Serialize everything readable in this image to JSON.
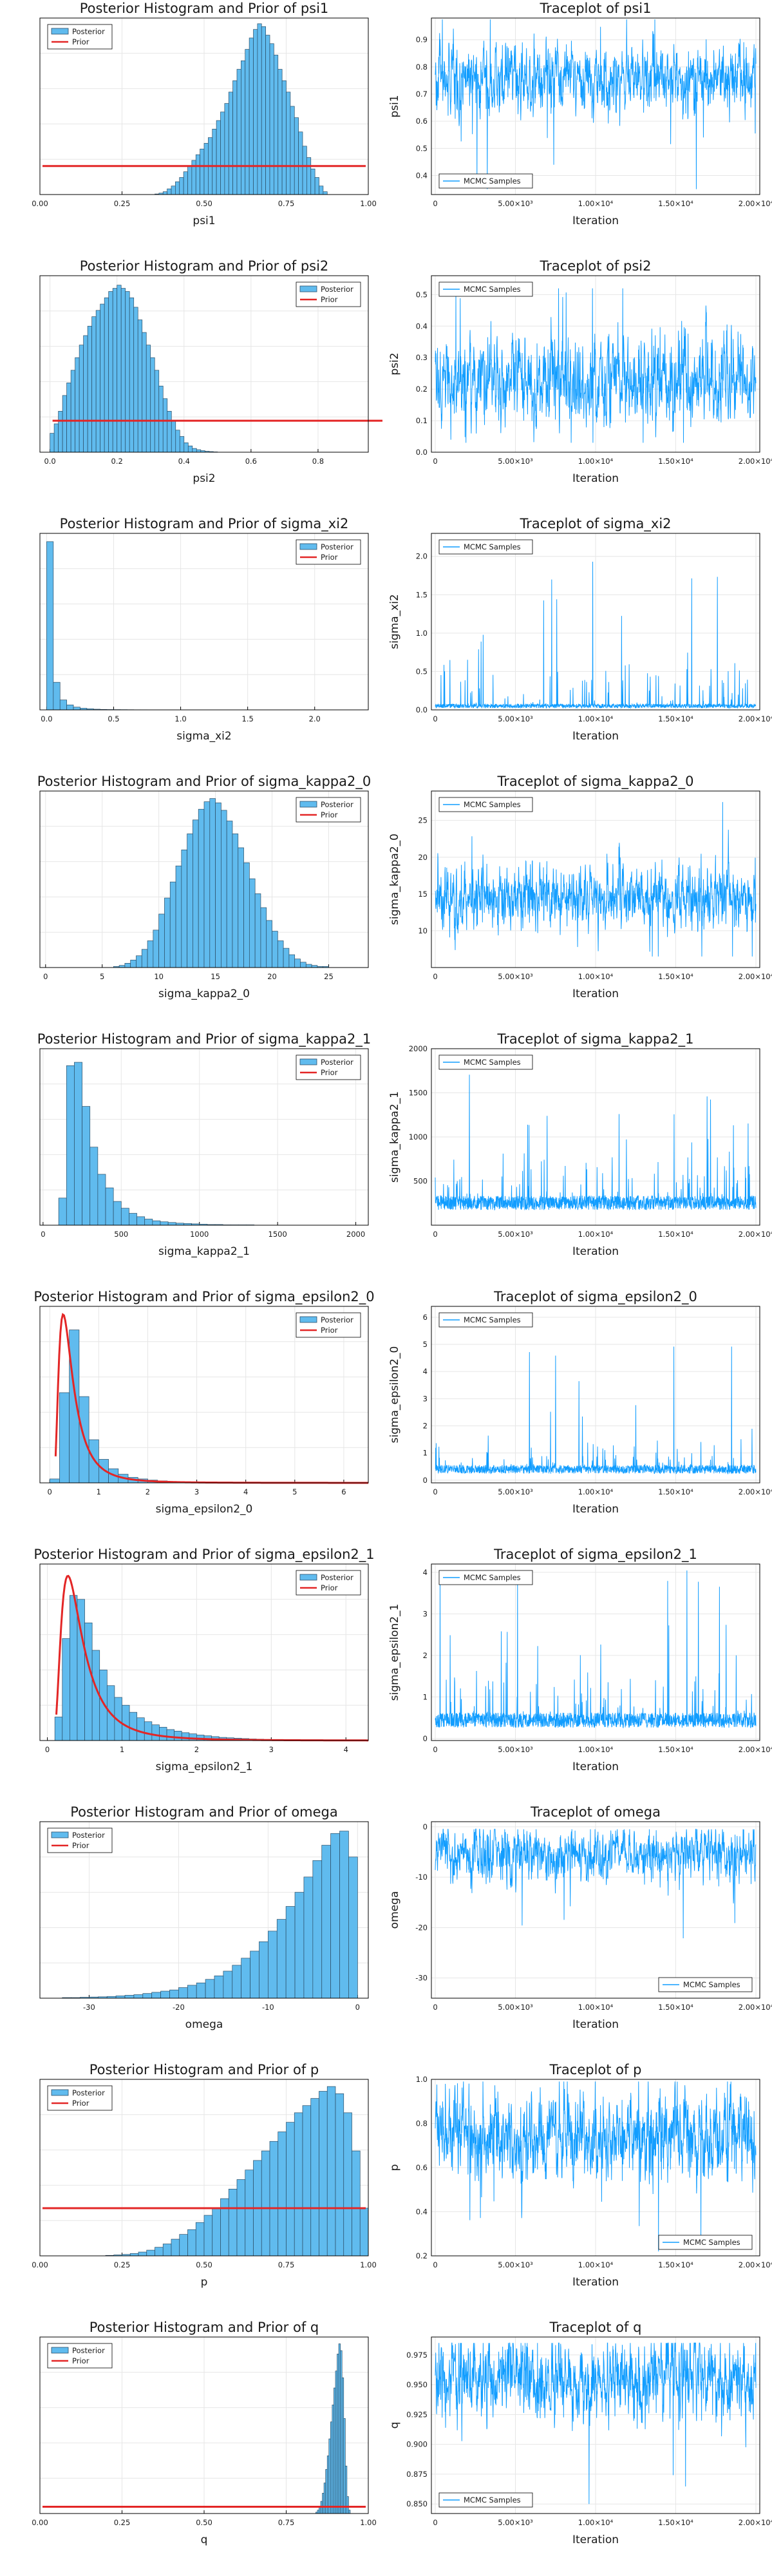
{
  "colors": {
    "histogram_fill": "#60bbee",
    "histogram_edge": "#2b4d66",
    "prior_line": "#e32626",
    "trace_line": "#119dff"
  },
  "legend": {
    "posterior": "Posterior",
    "prior": "Prior",
    "mcmc": "MCMC Samples"
  },
  "trace_xaxis": {
    "label": "Iteration",
    "ticks": [
      0,
      5000,
      10000,
      15000,
      20000
    ],
    "tick_labels": [
      "0",
      "5.00×10³",
      "1.00×10⁴",
      "1.50×10⁴",
      "2.00×10⁴"
    ],
    "range": [
      0,
      20000
    ]
  },
  "chart_data": [
    {
      "param": "psi1",
      "type": "bar",
      "title": "Posterior Histogram and Prior of psi1",
      "xlabel": "psi1",
      "xlim": [
        0,
        1
      ],
      "xticks": [
        0.0,
        0.25,
        0.5,
        0.75,
        1.0
      ],
      "xtick_labels": [
        "0.00",
        "0.25",
        "0.50",
        "0.75",
        "1.00"
      ],
      "ylim": [
        0,
        6.2
      ],
      "bin_start": 0.35,
      "bin_width": 0.0125,
      "values": [
        0.02,
        0.05,
        0.1,
        0.2,
        0.3,
        0.45,
        0.6,
        0.8,
        1.0,
        1.2,
        1.4,
        1.6,
        1.8,
        2.0,
        2.3,
        2.6,
        2.9,
        3.2,
        3.6,
        4.0,
        4.4,
        4.7,
        5.1,
        5.5,
        5.8,
        6.0,
        5.9,
        5.6,
        5.3,
        4.9,
        4.4,
        4.0,
        3.6,
        3.1,
        2.7,
        2.2,
        1.7,
        1.3,
        0.9,
        0.6,
        0.3,
        0.1
      ],
      "prior_type": "uniform",
      "prior_range": [
        0,
        1
      ],
      "legend_position": "top-left",
      "trace": {
        "title": "Traceplot of psi1",
        "ylabel": "psi1",
        "ylim": [
          0.33,
          0.98
        ],
        "yticks": [
          0.4,
          0.5,
          0.6,
          0.7,
          0.8,
          0.9
        ],
        "ytick_labels": [
          "0.4",
          "0.5",
          "0.6",
          "0.7",
          "0.8",
          "0.9"
        ],
        "mean": 0.76,
        "sd": 0.08,
        "min": 0.35,
        "max": 0.975,
        "legend_position": "bottom-left"
      }
    },
    {
      "param": "psi2",
      "type": "bar",
      "title": "Posterior Histogram and Prior of psi2",
      "xlabel": "psi2",
      "xlim": [
        -0.03,
        0.95
      ],
      "xticks": [
        0.0,
        0.2,
        0.4,
        0.6,
        0.8
      ],
      "xtick_labels": [
        "0.0",
        "0.2",
        "0.4",
        "0.6",
        "0.8"
      ],
      "ylim": [
        0,
        5.6
      ],
      "bin_start": 0.0,
      "bin_width": 0.0125,
      "values": [
        0.6,
        0.9,
        1.3,
        1.8,
        2.2,
        2.6,
        3.0,
        3.4,
        3.7,
        4.0,
        4.3,
        4.5,
        4.7,
        4.9,
        5.1,
        5.2,
        5.3,
        5.2,
        5.1,
        4.9,
        4.6,
        4.2,
        3.8,
        3.4,
        3.0,
        2.6,
        2.1,
        1.7,
        1.3,
        1.0,
        0.7,
        0.5,
        0.3,
        0.2,
        0.12,
        0.08,
        0.05,
        0.03,
        0.02,
        0.01
      ],
      "prior_type": "uniform",
      "prior_range": [
        0,
        1
      ],
      "legend_position": "top-right",
      "trace": {
        "title": "Traceplot of psi2",
        "ylabel": "psi2",
        "ylim": [
          0,
          0.56
        ],
        "yticks": [
          0.0,
          0.1,
          0.2,
          0.3,
          0.4,
          0.5
        ],
        "ytick_labels": [
          "0.0",
          "0.1",
          "0.2",
          "0.3",
          "0.4",
          "0.5"
        ],
        "mean": 0.23,
        "sd": 0.09,
        "min": 0.03,
        "max": 0.52,
        "legend_position": "top-left"
      }
    },
    {
      "param": "sigma_xi2",
      "type": "bar",
      "title": "Posterior Histogram and Prior of sigma_xi2",
      "xlabel": "sigma_xi2",
      "xlim": [
        -0.05,
        2.4
      ],
      "xticks": [
        0.0,
        0.5,
        1.0,
        1.5,
        2.0
      ],
      "xtick_labels": [
        "0.0",
        "0.5",
        "1.0",
        "1.5",
        "2.0"
      ],
      "ylim": [
        0,
        32
      ],
      "bin_start": 0.0,
      "bin_width": 0.05,
      "values": [
        30.5,
        5.0,
        1.8,
        0.9,
        0.5,
        0.3,
        0.2,
        0.12,
        0.08,
        0.06,
        0.05,
        0.04,
        0.03,
        0.02,
        0.02,
        0.01,
        0.01,
        0.01,
        0.01,
        0.01
      ],
      "prior_type": "none",
      "legend_position": "top-right",
      "trace": {
        "title": "Traceplot of sigma_xi2",
        "ylabel": "sigma_xi2",
        "ylim": [
          0,
          2.3
        ],
        "yticks": [
          0.0,
          0.5,
          1.0,
          1.5,
          2.0
        ],
        "ytick_labels": [
          "0.0",
          "0.5",
          "1.0",
          "1.5",
          "2.0"
        ],
        "mean": 0.06,
        "sd": 0.12,
        "min": 0.0,
        "max": 2.2,
        "legend_position": "top-left"
      }
    },
    {
      "param": "sigma_kappa2_0",
      "type": "bar",
      "title": "Posterior Histogram and Prior of sigma_kappa2_0",
      "xlabel": "sigma_kappa2_0",
      "xlim": [
        -0.5,
        28.5
      ],
      "xticks": [
        0,
        5,
        10,
        15,
        20,
        25
      ],
      "xtick_labels": [
        "0",
        "5",
        "10",
        "15",
        "20",
        "25"
      ],
      "ylim": [
        0,
        0.165
      ],
      "bin_start": 6.0,
      "bin_width": 0.5,
      "values": [
        0.001,
        0.002,
        0.004,
        0.007,
        0.011,
        0.017,
        0.025,
        0.035,
        0.05,
        0.065,
        0.08,
        0.095,
        0.11,
        0.125,
        0.138,
        0.148,
        0.155,
        0.158,
        0.154,
        0.147,
        0.137,
        0.125,
        0.112,
        0.098,
        0.083,
        0.069,
        0.056,
        0.044,
        0.034,
        0.025,
        0.018,
        0.012,
        0.008,
        0.005,
        0.003,
        0.002,
        0.001,
        0.001
      ],
      "prior_type": "none",
      "legend_position": "top-right",
      "trace": {
        "title": "Traceplot of sigma_kappa2_0",
        "ylabel": "sigma_kappa2_0",
        "ylim": [
          5,
          29
        ],
        "yticks": [
          10,
          15,
          20,
          25
        ],
        "ytick_labels": [
          "10",
          "15",
          "20",
          "25"
        ],
        "mean": 14.5,
        "sd": 2.8,
        "min": 6.5,
        "max": 27.5,
        "legend_position": "top-left"
      }
    },
    {
      "param": "sigma_kappa2_1",
      "type": "bar",
      "title": "Posterior Histogram and Prior of sigma_kappa2_1",
      "xlabel": "sigma_kappa2_1",
      "xlim": [
        -20,
        2080
      ],
      "xticks": [
        0,
        500,
        1000,
        1500,
        2000
      ],
      "xtick_labels": [
        "0",
        "500",
        "1000",
        "1500",
        "2000"
      ],
      "ylim": [
        0,
        0.0052
      ],
      "bin_start": 100,
      "bin_width": 50,
      "values": [
        0.0008,
        0.0047,
        0.0048,
        0.0035,
        0.0023,
        0.0015,
        0.0011,
        0.0007,
        0.0005,
        0.00035,
        0.00025,
        0.00018,
        0.00013,
        0.0001,
        8e-05,
        6e-05,
        5e-05,
        4e-05,
        3e-05,
        2e-05,
        2e-05,
        1e-05,
        1e-05,
        1e-05,
        1e-05
      ],
      "prior_type": "none",
      "legend_position": "top-right",
      "trace": {
        "title": "Traceplot of sigma_kappa2_1",
        "ylabel": "sigma_kappa2_1",
        "ylim": [
          0,
          2000
        ],
        "yticks": [
          500,
          1000,
          1500,
          2000
        ],
        "ytick_labels": [
          "500",
          "1000",
          "1500",
          "2000"
        ],
        "mean": 280,
        "sd": 120,
        "min": 100,
        "max": 1950,
        "legend_position": "top-left"
      }
    },
    {
      "param": "sigma_epsilon2_0",
      "type": "bar",
      "title": "Posterior Histogram and Prior of sigma_epsilon2_0",
      "xlabel": "sigma_epsilon2_0",
      "xlim": [
        -0.2,
        6.5
      ],
      "xticks": [
        0,
        1,
        2,
        3,
        4,
        5,
        6
      ],
      "xtick_labels": [
        "0",
        "1",
        "2",
        "3",
        "4",
        "5",
        "6"
      ],
      "ylim": [
        0,
        2.25
      ],
      "bin_start": 0.0,
      "bin_width": 0.2,
      "values": [
        0.05,
        1.15,
        1.95,
        1.1,
        0.55,
        0.3,
        0.18,
        0.11,
        0.07,
        0.05,
        0.035,
        0.025,
        0.018,
        0.013,
        0.01,
        0.008,
        0.006,
        0.005,
        0.004,
        0.003,
        0.003,
        0.002,
        0.002,
        0.001,
        0.001,
        0.001,
        0.001,
        0.001,
        0.001,
        0.001
      ],
      "prior_type": "invgamma",
      "prior_shape": 3,
      "prior_scale": 1.1,
      "prior_peak": 2.15,
      "legend_position": "top-right",
      "trace": {
        "title": "Traceplot of sigma_epsilon2_0",
        "ylabel": "sigma_epsilon2_0",
        "ylim": [
          -0.1,
          6.4
        ],
        "yticks": [
          0,
          1,
          2,
          3,
          4,
          5,
          6
        ],
        "ytick_labels": [
          "0",
          "1",
          "2",
          "3",
          "4",
          "5",
          "6"
        ],
        "mean": 0.45,
        "sd": 0.2,
        "min": 0.1,
        "max": 6.1,
        "legend_position": "top-left"
      }
    },
    {
      "param": "sigma_epsilon2_1",
      "type": "bar",
      "title": "Posterior Histogram and Prior of sigma_epsilon2_1",
      "xlabel": "sigma_epsilon2_1",
      "xlim": [
        -0.1,
        4.3
      ],
      "xticks": [
        0,
        1,
        2,
        3,
        4
      ],
      "xtick_labels": [
        "0",
        "1",
        "2",
        "3",
        "4"
      ],
      "ylim": [
        0,
        2.25
      ],
      "bin_start": 0.1,
      "bin_width": 0.1,
      "values": [
        0.3,
        1.3,
        1.85,
        1.8,
        1.5,
        1.15,
        0.9,
        0.7,
        0.55,
        0.45,
        0.36,
        0.29,
        0.24,
        0.2,
        0.17,
        0.14,
        0.12,
        0.1,
        0.085,
        0.07,
        0.06,
        0.05,
        0.04,
        0.035,
        0.03,
        0.025,
        0.02,
        0.017,
        0.014,
        0.012,
        0.01,
        0.009,
        0.008,
        0.007,
        0.006,
        0.005,
        0.004,
        0.003,
        0.002,
        0.002
      ],
      "prior_type": "invgamma",
      "prior_shape": 3,
      "prior_scale": 1.1,
      "prior_peak": 2.1,
      "legend_position": "top-right",
      "trace": {
        "title": "Traceplot of sigma_epsilon2_1",
        "ylabel": "sigma_epsilon2_1",
        "ylim": [
          -0.05,
          4.2
        ],
        "yticks": [
          0,
          1,
          2,
          3,
          4
        ],
        "ytick_labels": [
          "0",
          "1",
          "2",
          "3",
          "4"
        ],
        "mean": 0.5,
        "sd": 0.25,
        "min": 0.1,
        "max": 4.1,
        "legend_position": "top-left"
      }
    },
    {
      "param": "omega",
      "type": "bar",
      "title": "Posterior Histogram and Prior of omega",
      "xlabel": "omega",
      "xlim": [
        -35.5,
        1.2
      ],
      "xticks": [
        -30,
        -20,
        -10,
        0
      ],
      "xtick_labels": [
        "-30",
        "-20",
        "-10",
        "0"
      ],
      "ylim": [
        0,
        0.15
      ],
      "bin_start": -33,
      "bin_width": 1,
      "values": [
        0.0005,
        0.0005,
        0.0008,
        0.001,
        0.0012,
        0.0015,
        0.002,
        0.0025,
        0.003,
        0.004,
        0.005,
        0.006,
        0.007,
        0.009,
        0.011,
        0.013,
        0.016,
        0.019,
        0.023,
        0.028,
        0.034,
        0.04,
        0.048,
        0.057,
        0.067,
        0.078,
        0.09,
        0.103,
        0.117,
        0.13,
        0.14,
        0.142,
        0.12
      ],
      "prior_type": "none",
      "legend_position": "top-left",
      "trace": {
        "title": "Traceplot of omega",
        "ylabel": "omega",
        "ylim": [
          -34,
          1
        ],
        "yticks": [
          -30,
          -20,
          -10,
          0
        ],
        "ytick_labels": [
          "-30",
          "-20",
          "-10",
          "0"
        ],
        "mean": -5.5,
        "sd": 3.5,
        "min": -32,
        "max": -0.5,
        "legend_position": "bottom-right"
      }
    },
    {
      "param": "p",
      "type": "bar",
      "title": "Posterior Histogram and Prior of p",
      "xlabel": "p",
      "xlim": [
        0,
        1
      ],
      "xticks": [
        0.0,
        0.25,
        0.5,
        0.75,
        1.0
      ],
      "xtick_labels": [
        "0.00",
        "0.25",
        "0.50",
        "0.75",
        "1.00"
      ],
      "ylim": [
        0,
        3.7
      ],
      "bin_start": 0.2,
      "bin_width": 0.025,
      "values": [
        0.01,
        0.02,
        0.03,
        0.05,
        0.08,
        0.12,
        0.18,
        0.25,
        0.35,
        0.45,
        0.55,
        0.7,
        0.85,
        1.0,
        1.2,
        1.4,
        1.6,
        1.8,
        2.0,
        2.2,
        2.4,
        2.6,
        2.8,
        3.0,
        3.15,
        3.3,
        3.45,
        3.55,
        3.4,
        3.0,
        2.2,
        1.0
      ],
      "prior_type": "uniform",
      "prior_range": [
        0,
        1
      ],
      "legend_position": "top-left",
      "trace": {
        "title": "Traceplot of p",
        "ylabel": "p",
        "ylim": [
          0.2,
          1.0
        ],
        "yticks": [
          0.2,
          0.4,
          0.6,
          0.8,
          1.0
        ],
        "ytick_labels": [
          "0.2",
          "0.4",
          "0.6",
          "0.8",
          "1.0"
        ],
        "mean": 0.74,
        "sd": 0.13,
        "min": 0.22,
        "max": 0.99,
        "legend_position": "bottom-right"
      }
    },
    {
      "param": "q",
      "type": "bar",
      "title": "Posterior Histogram and Prior of q",
      "xlabel": "q",
      "xlim": [
        0,
        1
      ],
      "xticks": [
        0.0,
        0.25,
        0.5,
        0.75,
        1.0
      ],
      "xtick_labels": [
        "0.00",
        "0.25",
        "0.50",
        "0.75",
        "1.00"
      ],
      "ylim": [
        0,
        26
      ],
      "bin_start": 0.84,
      "bin_width": 0.005,
      "values": [
        0.2,
        0.5,
        1.0,
        1.8,
        3.0,
        4.5,
        6.5,
        8.5,
        11.0,
        13.5,
        16.0,
        18.5,
        21.0,
        23.5,
        25.0,
        24.0,
        20.0,
        14.0,
        7.0,
        2.5,
        0.5
      ],
      "prior_type": "uniform",
      "prior_range": [
        0,
        1
      ],
      "legend_position": "top-left",
      "trace": {
        "title": "Traceplot of q",
        "ylabel": "q",
        "ylim": [
          0.842,
          0.99
        ],
        "yticks": [
          0.85,
          0.875,
          0.9,
          0.925,
          0.95,
          0.975
        ],
        "ytick_labels": [
          "0.850",
          "0.875",
          "0.900",
          "0.925",
          "0.950",
          "0.975"
        ],
        "mean": 0.955,
        "sd": 0.022,
        "min": 0.85,
        "max": 0.985,
        "legend_position": "bottom-left"
      }
    }
  ]
}
